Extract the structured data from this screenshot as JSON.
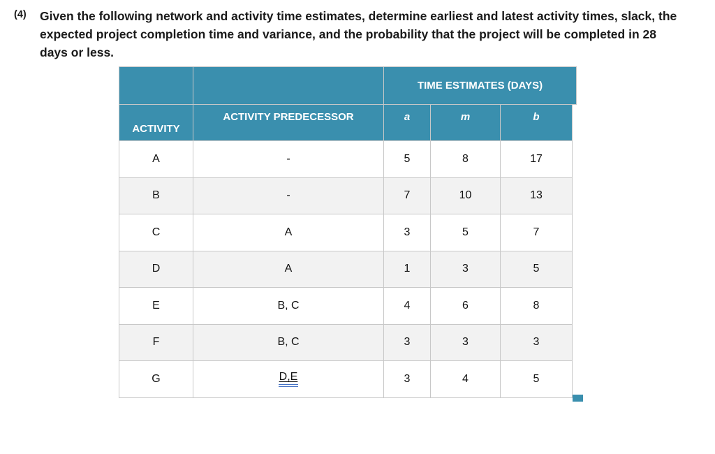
{
  "problem": {
    "number": "(4)",
    "lines": [
      "Given the following network and activity time estimates, determine earliest and latest activity times, slack, the",
      "expected project completion time and variance, and the probability that the project will be completed in 28",
      "days or less."
    ]
  },
  "table": {
    "header_row1": {
      "time_estimates_label": "TIME ESTIMATES (DAYS)"
    },
    "header_row2": {
      "activity": "ACTIVITY",
      "predecessor": "ACTIVITY PREDECESSOR",
      "a": "a",
      "m": "m",
      "b": "b"
    },
    "rows": [
      {
        "activity": "A",
        "predecessor": "-",
        "a": "5",
        "m": "8",
        "b": "17"
      },
      {
        "activity": "B",
        "predecessor": "-",
        "a": "7",
        "m": "10",
        "b": "13"
      },
      {
        "activity": "C",
        "predecessor": "A",
        "a": "3",
        "m": "5",
        "b": "7"
      },
      {
        "activity": "D",
        "predecessor": "A",
        "a": "1",
        "m": "3",
        "b": "5"
      },
      {
        "activity": "E",
        "predecessor": "B, C",
        "a": "4",
        "m": "6",
        "b": "8"
      },
      {
        "activity": "F",
        "predecessor": "B, C",
        "a": "3",
        "m": "3",
        "b": "3"
      },
      {
        "activity": "G",
        "predecessor": "D,E",
        "predecessor_grammar_underline": true,
        "a": "3",
        "m": "4",
        "b": "5"
      }
    ]
  },
  "colors": {
    "header_teal": "#3a8fae",
    "alt_row": "#f2f2f2",
    "border": "#c8c8c8",
    "grammar_underline": "#4472c4",
    "text": "#1a1a1a"
  }
}
